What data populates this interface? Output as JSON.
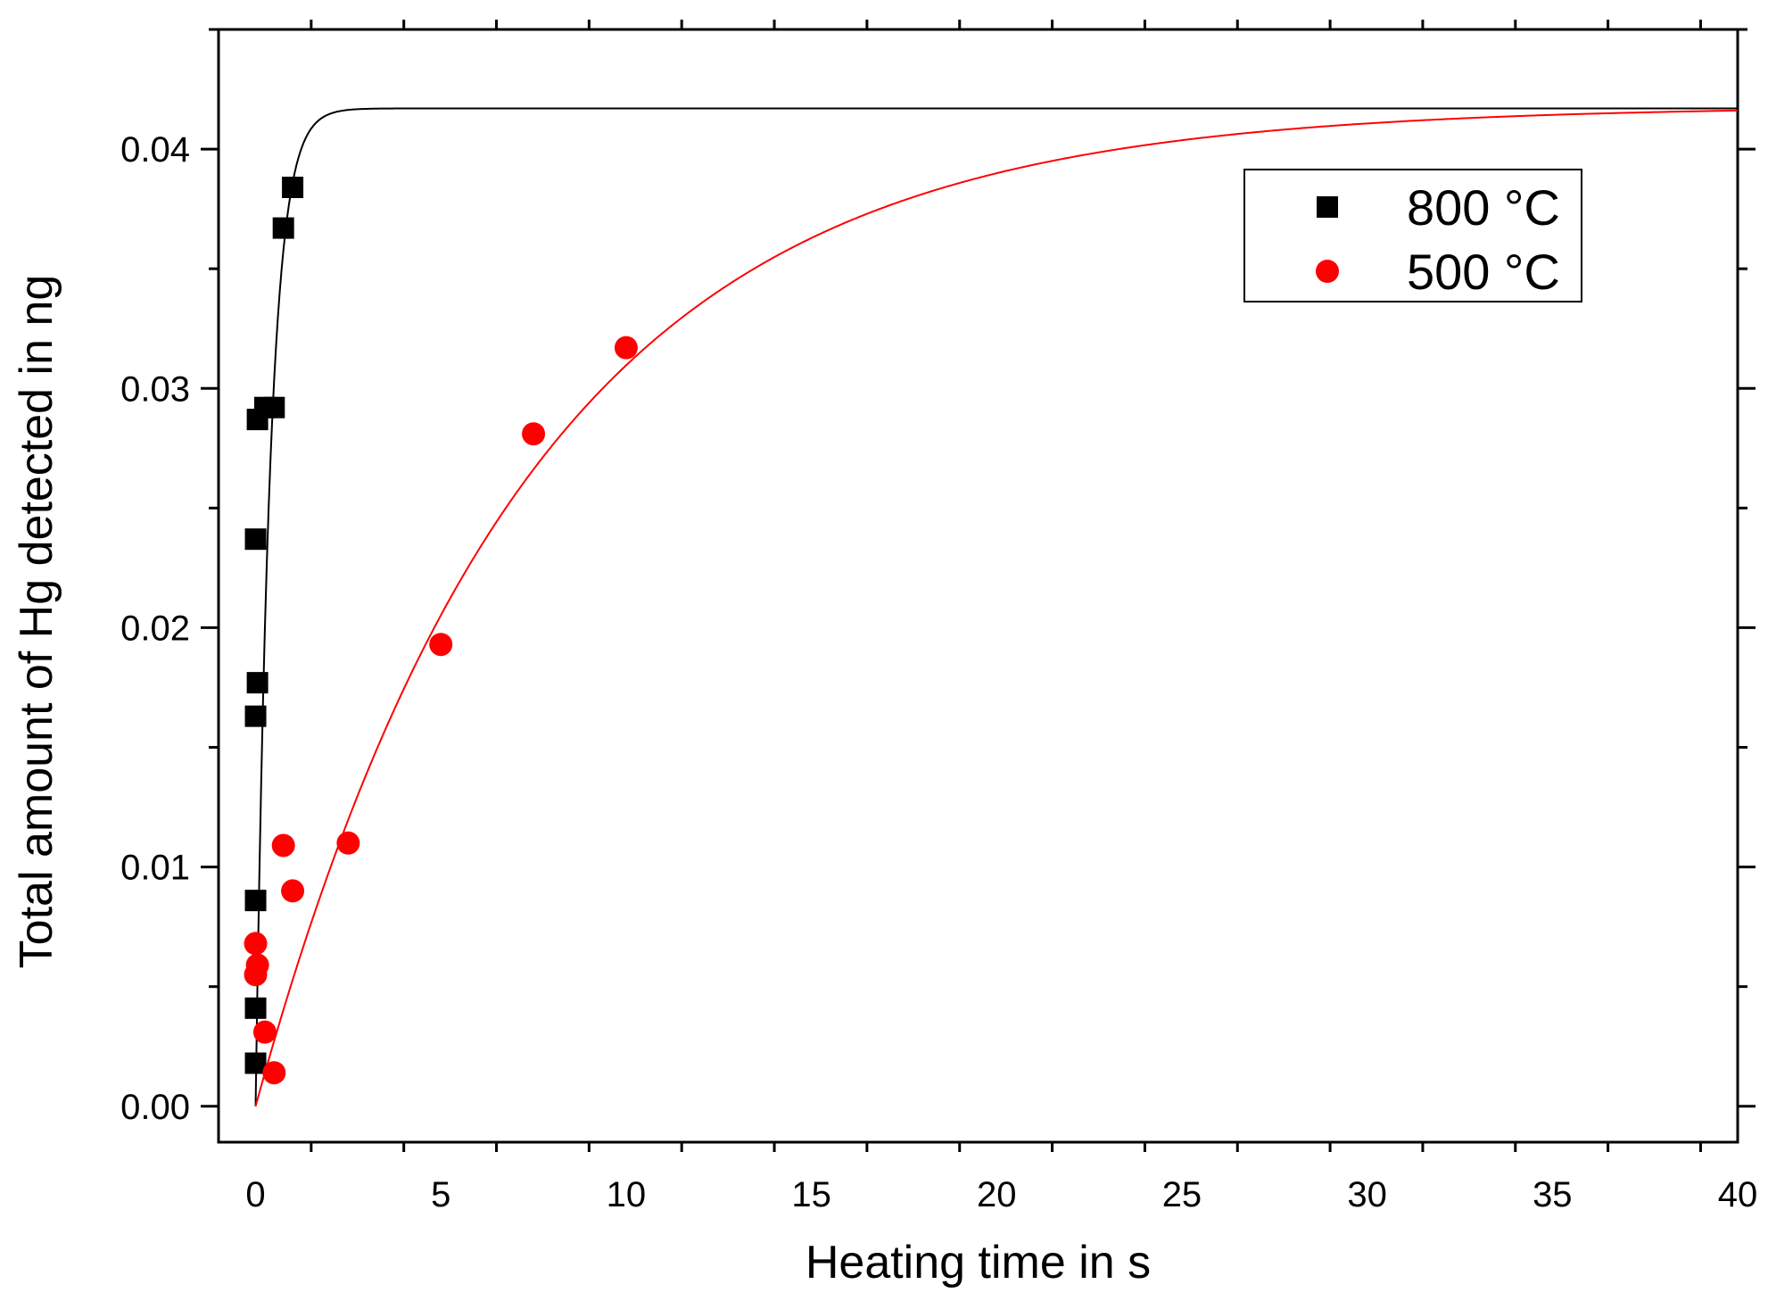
{
  "chart_data": {
    "type": "scatter",
    "title": "",
    "xlabel": "Heating time in s",
    "ylabel": "Total amount of Hg detected in ng",
    "xlim": [
      -1,
      40
    ],
    "ylim": [
      -0.0015,
      0.045
    ],
    "x_ticks": [
      0,
      5,
      10,
      15,
      20,
      25,
      30,
      35,
      40
    ],
    "x_tick_labels": [
      "0",
      "5",
      "10",
      "15",
      "20",
      "25",
      "30",
      "35",
      "40"
    ],
    "y_ticks": [
      0.0,
      0.01,
      0.02,
      0.03,
      0.04
    ],
    "y_tick_labels": [
      "0.00",
      "0.01",
      "0.02",
      "0.03",
      "0.04"
    ],
    "grid": false,
    "legend_position": "top-right",
    "series": [
      {
        "name": "800 °C",
        "marker": "square",
        "color": "#000000",
        "points": [
          {
            "x": 0.0,
            "y": 0.0018
          },
          {
            "x": 0.0,
            "y": 0.0041
          },
          {
            "x": 0.0,
            "y": 0.0086
          },
          {
            "x": 0.0,
            "y": 0.0163
          },
          {
            "x": 0.05,
            "y": 0.0177
          },
          {
            "x": 0.0,
            "y": 0.0237
          },
          {
            "x": 0.05,
            "y": 0.0287
          },
          {
            "x": 0.25,
            "y": 0.0292
          },
          {
            "x": 0.5,
            "y": 0.0292
          },
          {
            "x": 0.75,
            "y": 0.0367
          },
          {
            "x": 1.0,
            "y": 0.0384
          }
        ],
        "fit": {
          "model": "exponential_saturation",
          "plateau": 0.0417,
          "rate": 2.6
        }
      },
      {
        "name": "500 °C",
        "marker": "circle",
        "color": "#ff0000",
        "points": [
          {
            "x": 0.0,
            "y": 0.0055
          },
          {
            "x": 0.05,
            "y": 0.0059
          },
          {
            "x": 0.0,
            "y": 0.0068
          },
          {
            "x": 0.25,
            "y": 0.0031
          },
          {
            "x": 0.5,
            "y": 0.0014
          },
          {
            "x": 0.75,
            "y": 0.0109
          },
          {
            "x": 1.0,
            "y": 0.009
          },
          {
            "x": 2.5,
            "y": 0.011
          },
          {
            "x": 5.0,
            "y": 0.0193
          },
          {
            "x": 7.5,
            "y": 0.0281
          },
          {
            "x": 10.0,
            "y": 0.0317
          }
        ],
        "fit": {
          "model": "exponential_saturation",
          "plateau": 0.0418,
          "rate": 0.135
        }
      }
    ]
  }
}
